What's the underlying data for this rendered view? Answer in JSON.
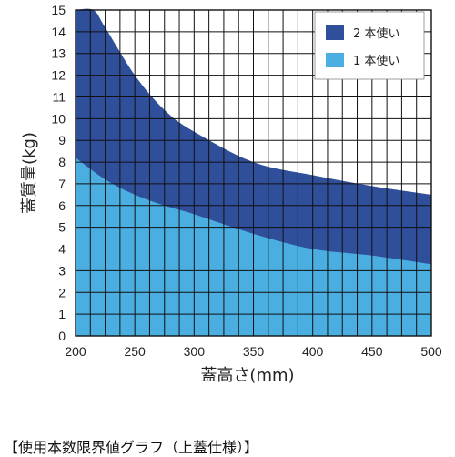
{
  "chart_data": {
    "type": "area",
    "title": "",
    "xlabel": "蓋高さ(mm)",
    "ylabel": "蓋質量(kg)",
    "xlim": [
      200,
      500
    ],
    "ylim": [
      0,
      15
    ],
    "x_ticks": [
      200,
      250,
      300,
      350,
      400,
      450,
      500
    ],
    "y_ticks": [
      0,
      1,
      2,
      3,
      4,
      5,
      6,
      7,
      8,
      9,
      10,
      11,
      12,
      13,
      14,
      15
    ],
    "grid": true,
    "legend_position": "top-right",
    "series": [
      {
        "name": "2 本使い",
        "color": "#2f4f9a",
        "x": [
          200,
          215,
          225,
          250,
          275,
          300,
          350,
          400,
          450,
          500
        ],
        "y": [
          15,
          15,
          14.2,
          12.0,
          10.4,
          9.4,
          8.0,
          7.4,
          6.9,
          6.5
        ]
      },
      {
        "name": "1 本使い",
        "color": "#4baee0",
        "x": [
          200,
          225,
          250,
          275,
          300,
          350,
          400,
          450,
          500
        ],
        "y": [
          8.2,
          7.2,
          6.5,
          6.0,
          5.6,
          4.7,
          4.0,
          3.7,
          3.3
        ]
      }
    ]
  },
  "caption": "【使用本数限界値グラフ（上蓋仕様）】"
}
